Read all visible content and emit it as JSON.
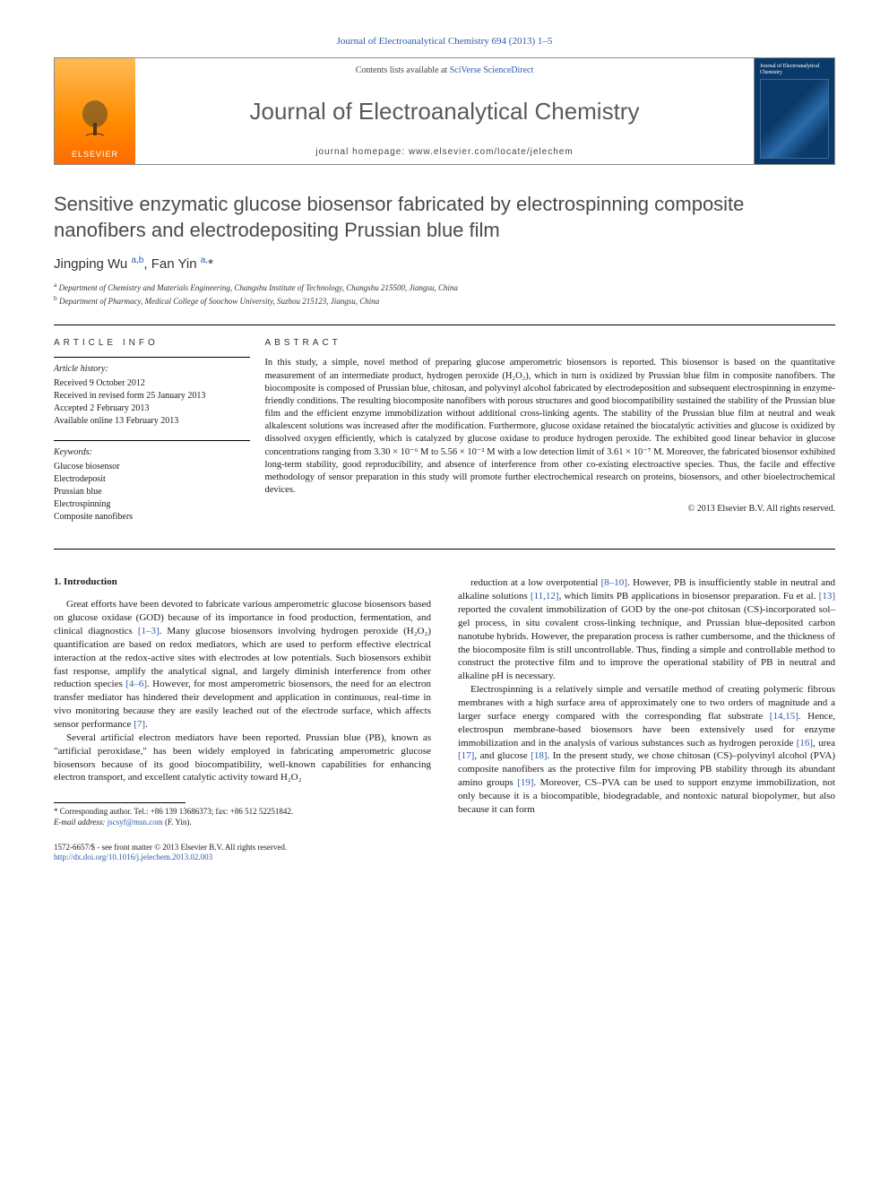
{
  "top_citation": "Journal of Electroanalytical Chemistry 694 (2013) 1–5",
  "header": {
    "publisher_name": "ELSEVIER",
    "contents_prefix": "Contents lists available at ",
    "contents_link": "SciVerse ScienceDirect",
    "journal_title": "Journal of Electroanalytical Chemistry",
    "homepage_prefix": "journal homepage: ",
    "homepage_url": "www.elsevier.com/locate/jelechem",
    "cover_label": "Journal of Electroanalytical Chemistry"
  },
  "article": {
    "title": "Sensitive enzymatic glucose biosensor fabricated by electrospinning composite nanofibers and electrodepositing Prussian blue film",
    "authors_html": "Jingping Wu <sup>a,b</sup>, Fan Yin <sup>a,</sup><span class='star'>*</span>",
    "affiliations": [
      {
        "marker": "a",
        "text": "Department of Chemistry and Materials Engineering, Changshu Institute of Technology, Changshu 215500, Jiangsu, China"
      },
      {
        "marker": "b",
        "text": "Department of Pharmacy, Medical College of Soochow University, Suzhou 215123, Jiangsu, China"
      }
    ]
  },
  "info": {
    "heading": "ARTICLE INFO",
    "history_label": "Article history:",
    "history": [
      "Received 9 October 2012",
      "Received in revised form 25 January 2013",
      "Accepted 2 February 2013",
      "Available online 13 February 2013"
    ],
    "keywords_label": "Keywords:",
    "keywords": [
      "Glucose biosensor",
      "Electrodeposit",
      "Prussian blue",
      "Electrospinning",
      "Composite nanofibers"
    ]
  },
  "abstract": {
    "heading": "ABSTRACT",
    "text": "In this study, a simple, novel method of preparing glucose amperometric biosensors is reported. This biosensor is based on the quantitative measurement of an intermediate product, hydrogen peroxide (H₂O₂), which in turn is oxidized by Prussian blue film in composite nanofibers. The biocomposite is composed of Prussian blue, chitosan, and polyvinyl alcohol fabricated by electrodeposition and subsequent electrospinning in enzyme-friendly conditions. The resulting biocomposite nanofibers with porous structures and good biocompatibility sustained the stability of the Prussian blue film and the efficient enzyme immobilization without additional cross-linking agents. The stability of the Prussian blue film at neutral and weak alkalescent solutions was increased after the modification. Furthermore, glucose oxidase retained the biocatalytic activities and glucose is oxidized by dissolved oxygen efficiently, which is catalyzed by glucose oxidase to produce hydrogen peroxide. The exhibited good linear behavior in glucose concentrations ranging from 3.30 × 10⁻⁶ M to 5.56 × 10⁻² M with a low detection limit of 3.61 × 10⁻⁷ M. Moreover, the fabricated biosensor exhibited long-term stability, good reproducibility, and absence of interference from other co-existing electroactive species. Thus, the facile and effective methodology of sensor preparation in this study will promote further electrochemical research on proteins, biosensors, and other bioelectrochemical devices.",
    "copyright": "© 2013 Elsevier B.V. All rights reserved."
  },
  "body": {
    "section_heading": "1. Introduction",
    "col1": [
      "Great efforts have been devoted to fabricate various amperometric glucose biosensors based on glucose oxidase (GOD) because of its importance in food production, fermentation, and clinical diagnostics [1–3]. Many glucose biosensors involving hydrogen peroxide (H₂O₂) quantification are based on redox mediators, which are used to perform effective electrical interaction at the redox-active sites with electrodes at low potentials. Such biosensors exhibit fast response, amplify the analytical signal, and largely diminish interference from other reduction species [4–6]. However, for most amperometric biosensors, the need for an electron transfer mediator has hindered their development and application in continuous, real-time in vivo monitoring because they are easily leached out of the electrode surface, which affects sensor performance [7].",
      "Several artificial electron mediators have been reported. Prussian blue (PB), known as \"artificial peroxidase,\" has been widely employed in fabricating amperometric glucose biosensors because of its good biocompatibility, well-known capabilities for enhancing electron transport, and excellent catalytic activity toward H₂O₂"
    ],
    "col2": [
      "reduction at a low overpotential [8–10]. However, PB is insufficiently stable in neutral and alkaline solutions [11,12], which limits PB applications in biosensor preparation. Fu et al. [13] reported the covalent immobilization of GOD by the one-pot chitosan (CS)-incorporated sol–gel process, in situ covalent cross-linking technique, and Prussian blue-deposited carbon nanotube hybrids. However, the preparation process is rather cumbersome, and the thickness of the biocomposite film is still uncontrollable. Thus, finding a simple and controllable method to construct the protective film and to improve the operational stability of PB in neutral and alkaline pH is necessary.",
      "Electrospinning is a relatively simple and versatile method of creating polymeric fibrous membranes with a high surface area of approximately one to two orders of magnitude and a larger surface energy compared with the corresponding flat substrate [14,15]. Hence, electrospun membrane-based biosensors have been extensively used for enzyme immobilization and in the analysis of various substances such as hydrogen peroxide [16], urea [17], and glucose [18]. In the present study, we chose chitosan (CS)–polyvinyl alcohol (PVA) composite nanofibers as the protective film for improving PB stability through its abundant amino groups [19]. Moreover, CS–PVA can be used to support enzyme immobilization, not only because it is a biocompatible, biodegradable, and nontoxic natural biopolymer, but also because it can form"
    ]
  },
  "footnote": {
    "corr_label": "* Corresponding author. Tel.: +86 139 13686373; fax: +86 512 52251842.",
    "email_label": "E-mail address:",
    "email": "jscsyf@msn.com",
    "email_suffix": "(F. Yin)."
  },
  "bottom": {
    "issn_line": "1572-6657/$ - see front matter © 2013 Elsevier B.V. All rights reserved.",
    "doi_url": "http://dx.doi.org/10.1016/j.jelechem.2013.02.003"
  },
  "colors": {
    "link": "#2a5caa",
    "publisher_gradient": [
      "#ffbb55",
      "#ff8c00",
      "#ff6a00"
    ],
    "cover_bg": "#0a3a6a"
  }
}
